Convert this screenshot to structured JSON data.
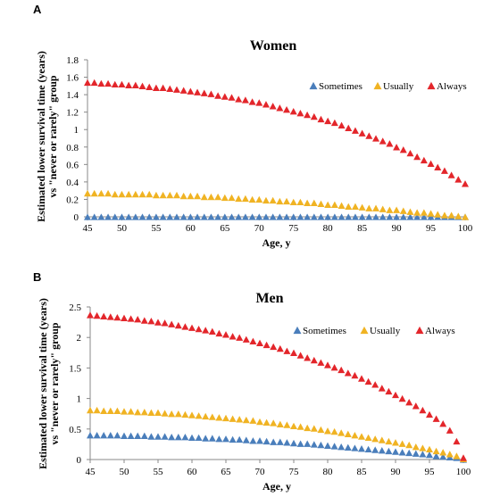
{
  "chart_data": [
    {
      "panel": "A",
      "type": "scatter",
      "title": "Women",
      "xlabel": "Age, y",
      "ylabel_lines": [
        "Estimated lower survival time (years)",
        "vs \"never or rarely\" group"
      ],
      "xlim": [
        45,
        100
      ],
      "ylim": [
        0,
        1.8
      ],
      "xticks": [
        45,
        50,
        55,
        60,
        65,
        70,
        75,
        80,
        85,
        90,
        95,
        100
      ],
      "yticks": [
        0,
        0.2,
        0.4,
        0.6,
        0.8,
        1,
        1.2,
        1.4,
        1.6,
        1.8
      ],
      "legend_position": "top-right",
      "x_step": 1,
      "series": [
        {
          "name": "Sometimes",
          "color": "#4a7ebb",
          "values": [
            0.0,
            0.0,
            0.0,
            0.0,
            0.0,
            0.0,
            0.0,
            0.0,
            0.0,
            0.0,
            0.0,
            0.0,
            0.0,
            0.0,
            0.0,
            0.0,
            0.0,
            0.0,
            0.0,
            0.0,
            0.0,
            0.0,
            0.0,
            0.0,
            0.0,
            0.0,
            0.0,
            0.0,
            0.0,
            0.0,
            0.0,
            0.0,
            0.0,
            0.0,
            0.0,
            0.0,
            0.0,
            0.0,
            0.0,
            0.0,
            0.0,
            0.0,
            0.0,
            0.0,
            0.0,
            0.0,
            0.0,
            0.0,
            0.0,
            0.0,
            0.0,
            0.0,
            0.0,
            0.0,
            0.0,
            0.0
          ]
        },
        {
          "name": "Usually",
          "color": "#f0b323",
          "values": [
            0.27,
            0.27,
            0.27,
            0.27,
            0.26,
            0.26,
            0.26,
            0.26,
            0.26,
            0.26,
            0.25,
            0.25,
            0.25,
            0.25,
            0.24,
            0.24,
            0.24,
            0.23,
            0.23,
            0.23,
            0.22,
            0.22,
            0.21,
            0.21,
            0.2,
            0.2,
            0.19,
            0.19,
            0.18,
            0.18,
            0.17,
            0.17,
            0.16,
            0.16,
            0.15,
            0.14,
            0.14,
            0.13,
            0.12,
            0.12,
            0.11,
            0.1,
            0.1,
            0.09,
            0.08,
            0.08,
            0.07,
            0.06,
            0.05,
            0.05,
            0.04,
            0.03,
            0.02,
            0.02,
            0.01,
            0.0
          ]
        },
        {
          "name": "Always",
          "color": "#e3262b",
          "values": [
            1.54,
            1.54,
            1.53,
            1.53,
            1.52,
            1.52,
            1.51,
            1.51,
            1.5,
            1.49,
            1.48,
            1.48,
            1.47,
            1.46,
            1.45,
            1.44,
            1.43,
            1.42,
            1.41,
            1.39,
            1.38,
            1.37,
            1.35,
            1.34,
            1.32,
            1.31,
            1.29,
            1.27,
            1.25,
            1.23,
            1.21,
            1.19,
            1.17,
            1.15,
            1.12,
            1.1,
            1.08,
            1.05,
            1.02,
            0.99,
            0.96,
            0.93,
            0.9,
            0.87,
            0.84,
            0.8,
            0.77,
            0.73,
            0.69,
            0.65,
            0.61,
            0.57,
            0.53,
            0.48,
            0.43,
            0.38
          ]
        }
      ]
    },
    {
      "panel": "B",
      "type": "scatter",
      "title": "Men",
      "xlabel": "Age, y",
      "ylabel_lines": [
        "Estimated lower survival time (years)",
        "vs \"never or rarely\" group"
      ],
      "xlim": [
        45,
        100
      ],
      "ylim": [
        0,
        2.5
      ],
      "xticks": [
        45,
        50,
        55,
        60,
        65,
        70,
        75,
        80,
        85,
        90,
        95,
        100
      ],
      "yticks": [
        0,
        0.5,
        1,
        1.5,
        2,
        2.5
      ],
      "legend_position": "top-right",
      "x_step": 1,
      "series": [
        {
          "name": "Sometimes",
          "color": "#4a7ebb",
          "values": [
            0.4,
            0.4,
            0.4,
            0.4,
            0.4,
            0.39,
            0.39,
            0.39,
            0.39,
            0.38,
            0.38,
            0.38,
            0.37,
            0.37,
            0.37,
            0.36,
            0.36,
            0.35,
            0.35,
            0.34,
            0.34,
            0.33,
            0.33,
            0.32,
            0.31,
            0.31,
            0.3,
            0.29,
            0.29,
            0.28,
            0.27,
            0.26,
            0.26,
            0.25,
            0.24,
            0.23,
            0.22,
            0.21,
            0.2,
            0.19,
            0.18,
            0.17,
            0.16,
            0.15,
            0.14,
            0.13,
            0.12,
            0.11,
            0.1,
            0.09,
            0.08,
            0.06,
            0.05,
            0.04,
            0.03,
            0.0
          ]
        },
        {
          "name": "Usually",
          "color": "#f0b323",
          "values": [
            0.81,
            0.81,
            0.8,
            0.8,
            0.8,
            0.79,
            0.79,
            0.78,
            0.78,
            0.77,
            0.77,
            0.76,
            0.75,
            0.75,
            0.74,
            0.73,
            0.72,
            0.71,
            0.7,
            0.69,
            0.68,
            0.67,
            0.66,
            0.65,
            0.64,
            0.62,
            0.61,
            0.6,
            0.58,
            0.57,
            0.55,
            0.54,
            0.52,
            0.51,
            0.49,
            0.47,
            0.46,
            0.44,
            0.42,
            0.4,
            0.38,
            0.36,
            0.34,
            0.32,
            0.3,
            0.28,
            0.26,
            0.24,
            0.21,
            0.19,
            0.17,
            0.14,
            0.12,
            0.09,
            0.06,
            0.01
          ]
        },
        {
          "name": "Always",
          "color": "#e3262b",
          "values": [
            2.37,
            2.36,
            2.35,
            2.34,
            2.33,
            2.32,
            2.31,
            2.3,
            2.28,
            2.27,
            2.25,
            2.24,
            2.22,
            2.2,
            2.18,
            2.16,
            2.14,
            2.12,
            2.1,
            2.07,
            2.05,
            2.02,
            2.0,
            1.97,
            1.94,
            1.91,
            1.88,
            1.85,
            1.82,
            1.78,
            1.75,
            1.71,
            1.67,
            1.63,
            1.59,
            1.55,
            1.51,
            1.47,
            1.42,
            1.38,
            1.33,
            1.28,
            1.23,
            1.17,
            1.12,
            1.06,
            1.0,
            0.94,
            0.88,
            0.81,
            0.74,
            0.67,
            0.59,
            0.48,
            0.3,
            0.03
          ]
        }
      ]
    }
  ]
}
